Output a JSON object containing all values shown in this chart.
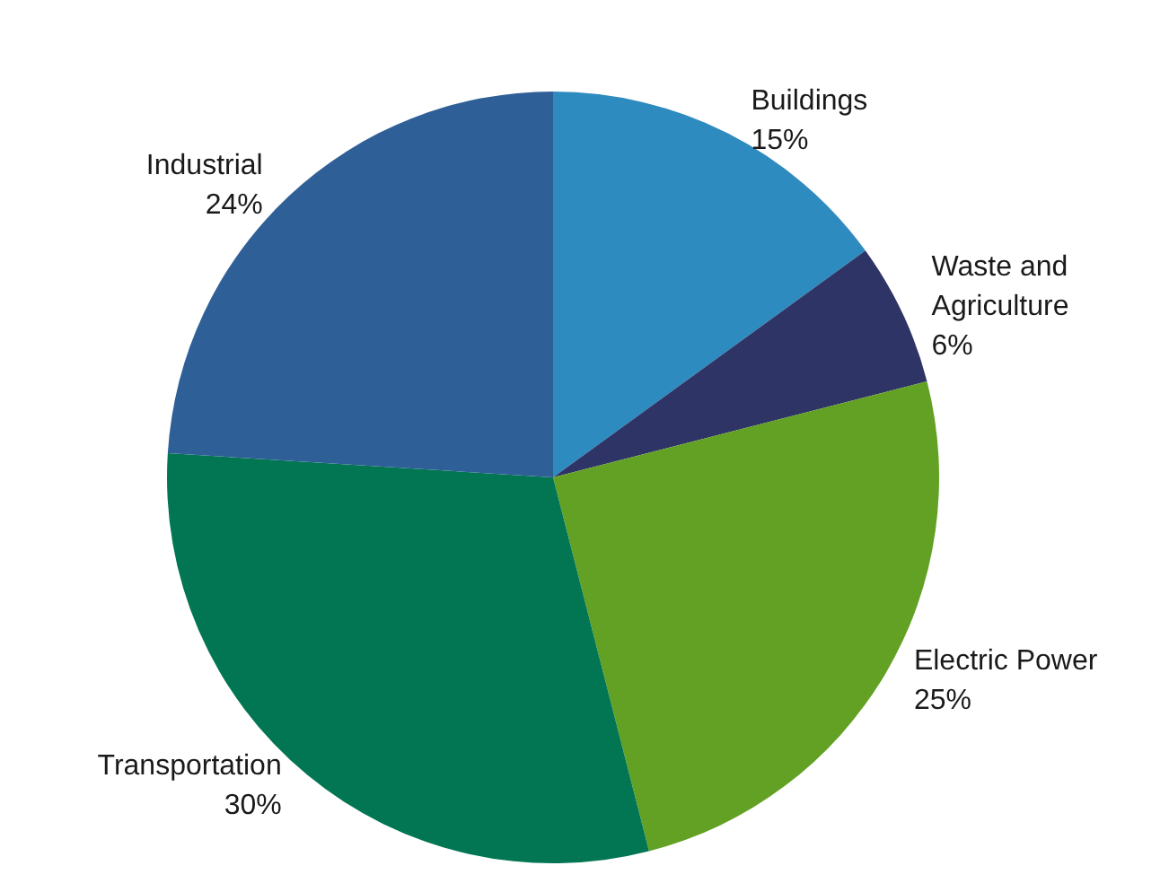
{
  "chart_data": {
    "type": "pie",
    "categories": [
      "Buildings",
      "Waste and\nAgriculture",
      "Electric Power",
      "Transportation",
      "Industrial"
    ],
    "values": [
      15,
      6,
      25,
      30,
      24
    ],
    "value_labels": [
      "15%",
      "6%",
      "25%",
      "30%",
      "24%"
    ],
    "colors": [
      "#2e8bc0",
      "#2e3466",
      "#62a123",
      "#027652",
      "#2f5f97"
    ],
    "legend": false
  }
}
